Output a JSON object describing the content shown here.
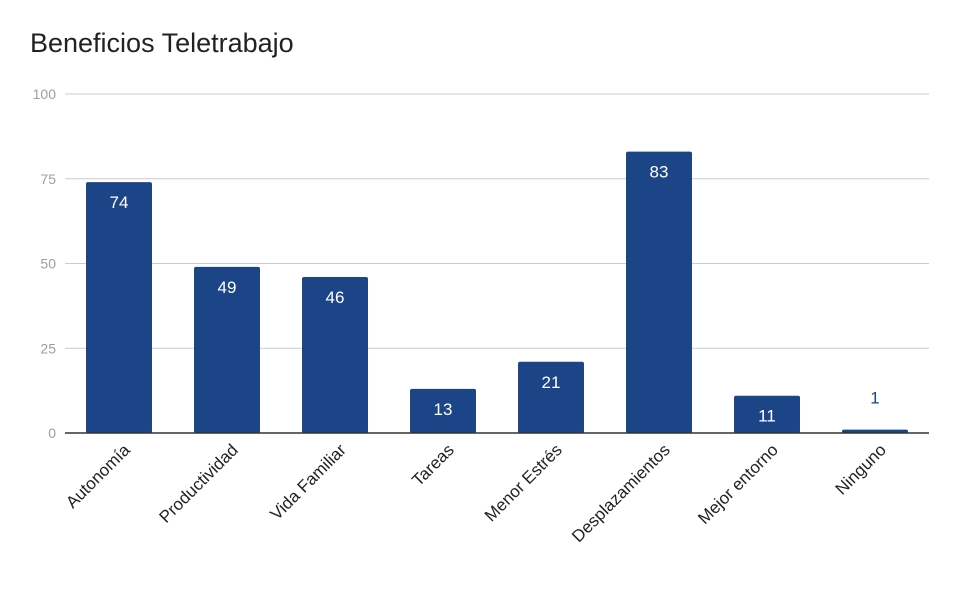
{
  "chart_data": {
    "type": "bar",
    "title": "Beneficios Teletrabajo",
    "categories": [
      "Autonomía",
      "Productividad",
      "Vida Familiar",
      "Tareas",
      "Menor Estrés",
      "Desplazamientos",
      "Mejor entorno",
      "Ninguno"
    ],
    "values": [
      74,
      49,
      46,
      13,
      21,
      83,
      11,
      1
    ],
    "value_labels": [
      "74",
      "49",
      "46",
      "13",
      "21",
      "83",
      "11",
      "1"
    ],
    "y_ticks": [
      0,
      25,
      50,
      75,
      100
    ],
    "y_tick_labels": [
      "0",
      "25",
      "50",
      "75",
      "100"
    ],
    "ylim": [
      0,
      100
    ],
    "xlabel": "",
    "ylabel": "",
    "grid": true,
    "legend": "none",
    "colors": {
      "bar": "#1c4587",
      "grid": "#cccccc",
      "axis": "#333333",
      "tick_text": "#9e9e9e",
      "label_text": "#222222",
      "value_inside": "#ffffff",
      "value_outside": "#1c4587"
    }
  }
}
